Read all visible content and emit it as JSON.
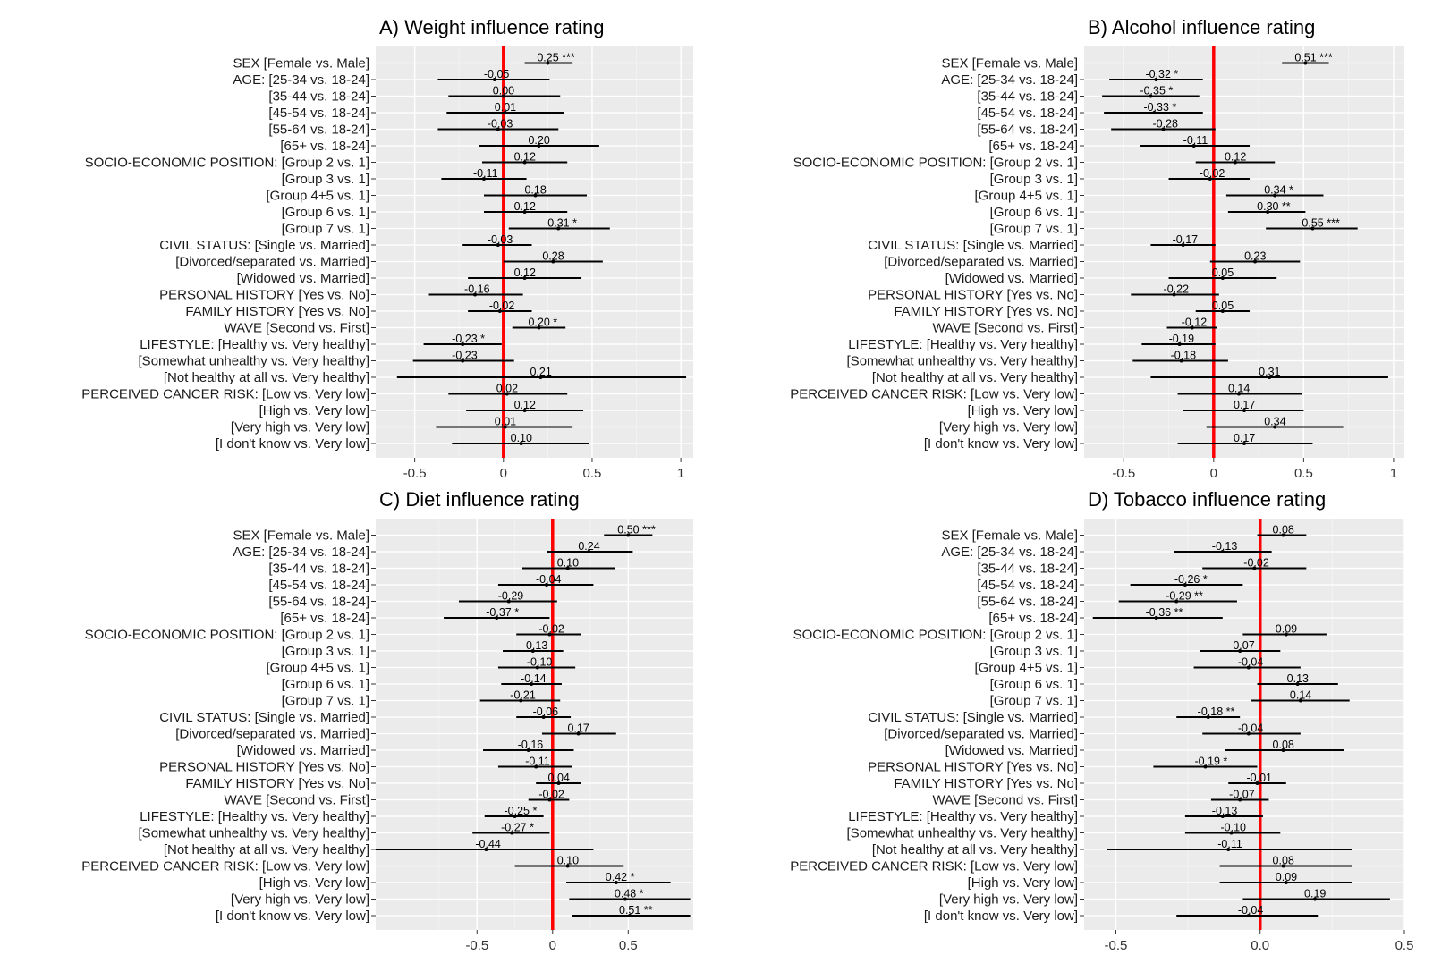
{
  "figure": {
    "row_labels": [
      "SEX [Female vs. Male]",
      "AGE: [25-34 vs. 18-24]",
      "[35-44 vs. 18-24]",
      "[45-54 vs. 18-24]",
      "[55-64 vs. 18-24]",
      "[65+ vs. 18-24]",
      "SOCIO-ECONOMIC POSITION: [Group 2 vs. 1]",
      "[Group 3 vs. 1]",
      "[Group 4+5 vs. 1]",
      "[Group 6 vs. 1]",
      "[Group 7 vs. 1]",
      "CIVIL STATUS: [Single vs. Married]",
      "[Divorced/separated vs. Married]",
      "[Widowed vs. Married]",
      "PERSONAL HISTORY [Yes vs. No]",
      "FAMILY HISTORY [Yes vs. No]",
      "WAVE [Second vs. First]",
      "LIFESTYLE: [Healthy vs. Very healthy]",
      "[Somewhat unhealthy vs. Very healthy]",
      "[Not healthy at all vs. Very healthy]",
      "PERCEIVED CANCER RISK: [Low vs. Very low]",
      "[High vs. Very low]",
      "[Very high vs. Very low]",
      "[I don't know vs. Very low]"
    ],
    "colors": {
      "panel_bg": "#ebebeb",
      "grid_major": "#ffffff",
      "grid_minor": "#f4f4f4",
      "zero_line": "#ff0000",
      "interval": "#000000"
    }
  },
  "chart_data": [
    {
      "type": "forest",
      "title": "A) Weight influence rating",
      "xlabel": "",
      "xlim": [
        -0.72,
        1.07
      ],
      "xticks": [
        -0.5,
        0,
        0.5,
        1
      ],
      "xtick_labels": [
        "-0.5",
        "0",
        "0.5",
        "1"
      ],
      "estimates": [
        0.25,
        -0.05,
        0.0,
        0.01,
        -0.03,
        0.2,
        0.12,
        -0.11,
        0.18,
        0.12,
        0.31,
        -0.03,
        0.28,
        0.12,
        -0.16,
        -0.02,
        0.2,
        -0.23,
        -0.23,
        0.21,
        0.02,
        0.12,
        0.01,
        0.1
      ],
      "ci_low": [
        0.12,
        -0.37,
        -0.31,
        -0.32,
        -0.37,
        -0.14,
        -0.12,
        -0.35,
        -0.11,
        -0.11,
        0.03,
        -0.23,
        0.0,
        -0.2,
        -0.42,
        -0.2,
        0.05,
        -0.45,
        -0.51,
        -0.6,
        -0.31,
        -0.21,
        -0.38,
        -0.29
      ],
      "ci_high": [
        0.39,
        0.26,
        0.32,
        0.34,
        0.31,
        0.54,
        0.36,
        0.13,
        0.47,
        0.36,
        0.6,
        0.16,
        0.56,
        0.44,
        0.11,
        0.16,
        0.35,
        -0.01,
        0.06,
        1.03,
        0.36,
        0.45,
        0.39,
        0.48
      ],
      "labels": [
        "0.25 ***",
        "-0.05",
        "0.00",
        "0.01",
        "-0.03",
        "0.20",
        "0.12",
        "-0.11",
        "0.18",
        "0.12",
        "0.31 *",
        "-0.03",
        "0.28",
        "0.12",
        "-0.16",
        "-0.02",
        "0.20 *",
        "-0.23 *",
        "-0.23",
        "0.21",
        "0.02",
        "0.12",
        "0.01",
        "0.10"
      ]
    },
    {
      "type": "forest",
      "title": "B) Alcohol influence rating",
      "xlabel": "",
      "xlim": [
        -0.72,
        1.06
      ],
      "xticks": [
        -0.5,
        0,
        0.5,
        1
      ],
      "xtick_labels": [
        "-0.5",
        "0",
        "0.5",
        "1"
      ],
      "estimates": [
        0.51,
        -0.32,
        -0.35,
        -0.33,
        -0.28,
        -0.11,
        0.12,
        -0.02,
        0.34,
        0.3,
        0.55,
        -0.17,
        0.23,
        0.05,
        -0.22,
        0.05,
        -0.12,
        -0.19,
        -0.18,
        0.31,
        0.14,
        0.17,
        0.34,
        0.17
      ],
      "ci_low": [
        0.38,
        -0.58,
        -0.62,
        -0.61,
        -0.57,
        -0.41,
        -0.1,
        -0.25,
        0.07,
        0.08,
        0.29,
        -0.35,
        -0.02,
        -0.25,
        -0.46,
        -0.1,
        -0.26,
        -0.4,
        -0.45,
        -0.35,
        -0.2,
        -0.17,
        -0.04,
        -0.2
      ],
      "ci_high": [
        0.64,
        -0.06,
        -0.08,
        -0.06,
        0.01,
        0.2,
        0.34,
        0.2,
        0.61,
        0.51,
        0.8,
        0.01,
        0.48,
        0.35,
        0.03,
        0.2,
        0.02,
        0.01,
        0.08,
        0.97,
        0.49,
        0.5,
        0.72,
        0.55
      ],
      "labels": [
        "0.51 ***",
        "-0.32 *",
        "-0.35 *",
        "-0.33 *",
        "-0.28",
        "-0.11",
        "0.12",
        "-0.02",
        "0.34 *",
        "0.30 **",
        "0.55 ***",
        "-0.17",
        "0.23",
        "0.05",
        "-0.22",
        "0.05",
        "-0.12",
        "-0.19",
        "-0.18",
        "0.31",
        "0.14",
        "0.17",
        "0.34",
        "0.17"
      ]
    },
    {
      "type": "forest",
      "title": "C) Diet influence rating",
      "xlabel": "",
      "xlim": [
        -1.17,
        0.93
      ],
      "xticks": [
        -0.5,
        0,
        0.5
      ],
      "xtick_labels": [
        "-0.5",
        "0",
        "0.5"
      ],
      "estimates": [
        0.5,
        0.24,
        0.1,
        -0.04,
        -0.29,
        -0.37,
        -0.02,
        -0.13,
        -0.1,
        -0.14,
        -0.21,
        -0.06,
        0.17,
        -0.16,
        -0.11,
        0.04,
        -0.02,
        -0.25,
        -0.27,
        -0.44,
        0.1,
        0.42,
        0.48,
        0.51
      ],
      "ci_low": [
        0.34,
        -0.04,
        -0.2,
        -0.36,
        -0.62,
        -0.72,
        -0.24,
        -0.33,
        -0.36,
        -0.34,
        -0.48,
        -0.24,
        -0.07,
        -0.46,
        -0.36,
        -0.11,
        -0.16,
        -0.45,
        -0.53,
        -1.17,
        -0.25,
        0.09,
        0.11,
        0.13
      ],
      "ci_high": [
        0.66,
        0.53,
        0.41,
        0.27,
        0.03,
        -0.02,
        0.19,
        0.07,
        0.15,
        0.06,
        0.05,
        0.12,
        0.42,
        0.14,
        0.13,
        0.19,
        0.11,
        -0.06,
        -0.02,
        0.27,
        0.47,
        0.78,
        0.91,
        0.91
      ],
      "labels": [
        "0.50 ***",
        "0.24",
        "0.10",
        "-0.04",
        "-0.29",
        "-0.37 *",
        "-0.02",
        "-0.13",
        "-0.10",
        "-0.14",
        "-0.21",
        "-0.06",
        "0.17",
        "-0.16",
        "-0.11",
        "0.04",
        "-0.02",
        "-0.25 *",
        "-0.27 *",
        "-0.44",
        "0.10",
        "0.42 *",
        "0.48 *",
        "0.51 **"
      ]
    },
    {
      "type": "forest",
      "title": "D) Tobacco influence rating",
      "xlabel": "",
      "xlim": [
        -0.61,
        0.5
      ],
      "xticks": [
        -0.5,
        0,
        0.5
      ],
      "xtick_labels": [
        "-0.5",
        "0.0",
        "0.5"
      ],
      "estimates": [
        0.08,
        -0.13,
        -0.02,
        -0.26,
        -0.29,
        -0.36,
        0.09,
        -0.07,
        -0.04,
        0.13,
        0.14,
        -0.18,
        -0.04,
        0.08,
        -0.19,
        -0.01,
        -0.07,
        -0.13,
        -0.1,
        -0.11,
        0.08,
        0.09,
        0.19,
        -0.04
      ],
      "ci_low": [
        -0.01,
        -0.3,
        -0.2,
        -0.45,
        -0.49,
        -0.58,
        -0.06,
        -0.21,
        -0.23,
        -0.01,
        -0.03,
        -0.29,
        -0.2,
        -0.12,
        -0.37,
        -0.11,
        -0.17,
        -0.26,
        -0.26,
        -0.53,
        -0.14,
        -0.14,
        -0.06,
        -0.29
      ],
      "ci_high": [
        0.16,
        0.04,
        0.16,
        -0.06,
        -0.08,
        -0.13,
        0.23,
        0.07,
        0.14,
        0.27,
        0.31,
        -0.07,
        0.14,
        0.29,
        -0.01,
        0.09,
        0.03,
        0.01,
        0.07,
        0.32,
        0.32,
        0.32,
        0.45,
        0.2
      ],
      "labels": [
        "0.08",
        "-0.13",
        "-0.02",
        "-0.26 *",
        "-0.29 **",
        "-0.36 **",
        "0.09",
        "-0.07",
        "-0.04",
        "0.13",
        "0.14",
        "-0.18 **",
        "-0.04",
        "0.08",
        "-0.19 *",
        "-0.01",
        "-0.07",
        "-0.13",
        "-0.10",
        "-0.11",
        "0.08",
        "0.09",
        "0.19",
        "-0.04"
      ]
    }
  ]
}
